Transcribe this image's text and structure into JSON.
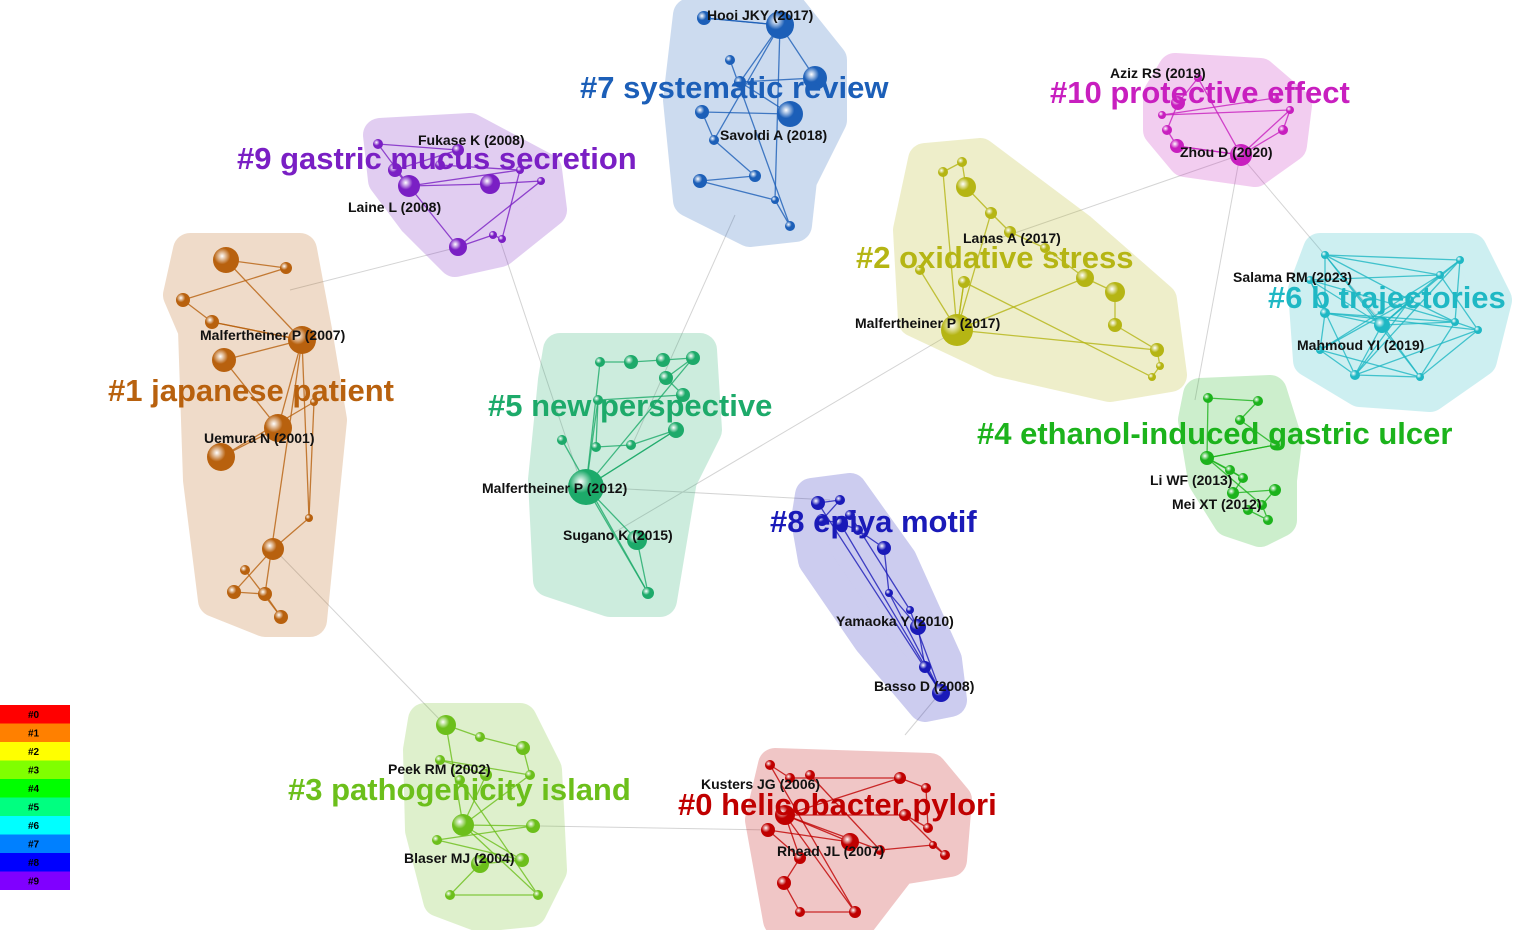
{
  "clusters": [
    {
      "label": "#0 helicobacter pylori",
      "color": "#c00000"
    },
    {
      "label": "#1 japanese patient",
      "color": "#b8610e"
    },
    {
      "label": "#2 oxidative stress",
      "color": "#b5b514"
    },
    {
      "label": "#3 pathogenicity island",
      "color": "#6cbf1b"
    },
    {
      "label": "#4 ethanol-induced gastric ulcer",
      "color": "#1cb31c"
    },
    {
      "label": "#5 new perspective",
      "color": "#1daa6a"
    },
    {
      "label": "#6 b trajectories",
      "color": "#1fb8c4"
    },
    {
      "label": "#7 systematic review",
      "color": "#1c5fb8"
    },
    {
      "label": "#8 epiya motif",
      "color": "#1a1ab8"
    },
    {
      "label": "#9 gastric mucus secretion",
      "color": "#7a1fc4"
    },
    {
      "label": "#10 protective effect",
      "color": "#c81fbf"
    }
  ],
  "nodes": [
    {
      "label": "Hooi JKY (2017)"
    },
    {
      "label": "Savoldi A (2018)"
    },
    {
      "label": "Fukase K (2008)"
    },
    {
      "label": "Laine L (2008)"
    },
    {
      "label": "Aziz RS (2019)"
    },
    {
      "label": "Zhou D (2020)"
    },
    {
      "label": "Lanas A (2017)"
    },
    {
      "label": "Malfertheiner P (2017)"
    },
    {
      "label": "Salama RM (2023)"
    },
    {
      "label": "Mahmoud YI (2019)"
    },
    {
      "label": "Malfertheiner P (2007)"
    },
    {
      "label": "Uemura N (2001)"
    },
    {
      "label": "Malfertheiner P (2012)"
    },
    {
      "label": "Sugano K (2015)"
    },
    {
      "label": "Li WF (2013)"
    },
    {
      "label": "Mei XT (2012)"
    },
    {
      "label": "Yamaoka Y (2010)"
    },
    {
      "label": "Basso D (2008)"
    },
    {
      "label": "Peek RM (2002)"
    },
    {
      "label": "Kusters JG (2006)"
    },
    {
      "label": "Blaser MJ (2004)"
    },
    {
      "label": "Rhead JL (2007)"
    }
  ],
  "legend": [
    {
      "label": "#0",
      "color": "#ff0000"
    },
    {
      "label": "#1",
      "color": "#ff8000"
    },
    {
      "label": "#2",
      "color": "#ffff00"
    },
    {
      "label": "#3",
      "color": "#80ff00"
    },
    {
      "label": "#4",
      "color": "#00ff00"
    },
    {
      "label": "#5",
      "color": "#00ff80"
    },
    {
      "label": "#6",
      "color": "#00ffff"
    },
    {
      "label": "#7",
      "color": "#0080ff"
    },
    {
      "label": "#8",
      "color": "#0000ff"
    },
    {
      "label": "#9",
      "color": "#8000ff"
    }
  ]
}
